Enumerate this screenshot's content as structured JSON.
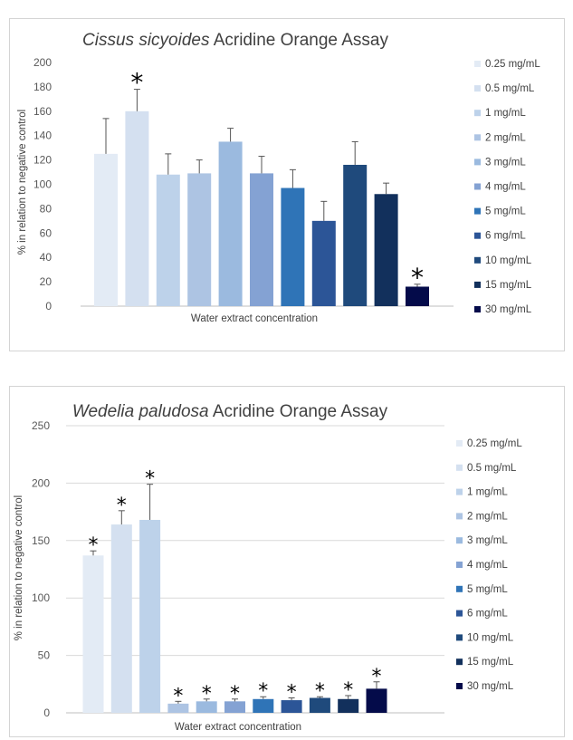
{
  "chart_data": [
    {
      "type": "bar",
      "title_italic": "Cissus sicyoides",
      "title_rest": " Acridine Orange Assay",
      "xlabel": "Water extract concentration",
      "ylabel": "% in relation to negative control",
      "ylim": [
        0,
        200
      ],
      "yticks": [
        "0",
        "20",
        "40",
        "60",
        "80",
        "100",
        "120",
        "140",
        "160",
        "180",
        "200"
      ],
      "categories": [
        "0.25 mg/mL",
        "0.5 mg/mL",
        "1 mg/mL",
        "2 mg/mL",
        "3 mg/mL",
        "4 mg/mL",
        "5 mg/mL",
        "6 mg/mL",
        "10 mg/mL",
        "15 mg/mL",
        "30 mg/mL"
      ],
      "values": [
        125,
        160,
        108,
        109,
        135,
        109,
        97,
        70,
        116,
        92,
        16
      ],
      "errors": [
        29,
        18,
        17,
        11,
        11,
        14,
        15,
        16,
        19,
        9,
        2
      ],
      "significant": [
        false,
        true,
        false,
        false,
        false,
        false,
        false,
        false,
        false,
        false,
        true
      ],
      "colors": [
        "#e3ebf5",
        "#d4e0f0",
        "#bdd2ea",
        "#adc4e3",
        "#9bbadf",
        "#84a2d3",
        "#2f74b7",
        "#2c5597",
        "#1f4a7c",
        "#12305c",
        "#040b4a"
      ],
      "legend_position": "right",
      "grid": false,
      "star_label": "*"
    },
    {
      "type": "bar",
      "title_italic": "Wedelia paludosa",
      "title_rest": " Acridine Orange Assay",
      "xlabel": "Water extract concentration",
      "ylabel": "% in relation to negative control",
      "ylim": [
        0,
        250
      ],
      "yticks": [
        "0",
        "50",
        "100",
        "150",
        "200",
        "250"
      ],
      "categories": [
        "0.25 mg/mL",
        "0.5 mg/mL",
        "1 mg/mL",
        "2 mg/mL",
        "3 mg/mL",
        "4 mg/mL",
        "5 mg/mL",
        "6 mg/mL",
        "10 mg/mL",
        "15 mg/mL",
        "30 mg/mL"
      ],
      "values": [
        137,
        164,
        168,
        8,
        10,
        10,
        12,
        11,
        13,
        12,
        21
      ],
      "errors": [
        4,
        12,
        31,
        2,
        2,
        2,
        2,
        2,
        1,
        3,
        6
      ],
      "significant": [
        true,
        true,
        true,
        true,
        true,
        true,
        true,
        true,
        true,
        true,
        true
      ],
      "colors": [
        "#e3ebf5",
        "#d4e0f0",
        "#bdd2ea",
        "#adc4e3",
        "#9bbadf",
        "#84a2d3",
        "#2f74b7",
        "#2c5597",
        "#1f4a7c",
        "#12305c",
        "#040b4a"
      ],
      "legend_position": "right",
      "grid": true,
      "star_label": "*"
    }
  ]
}
